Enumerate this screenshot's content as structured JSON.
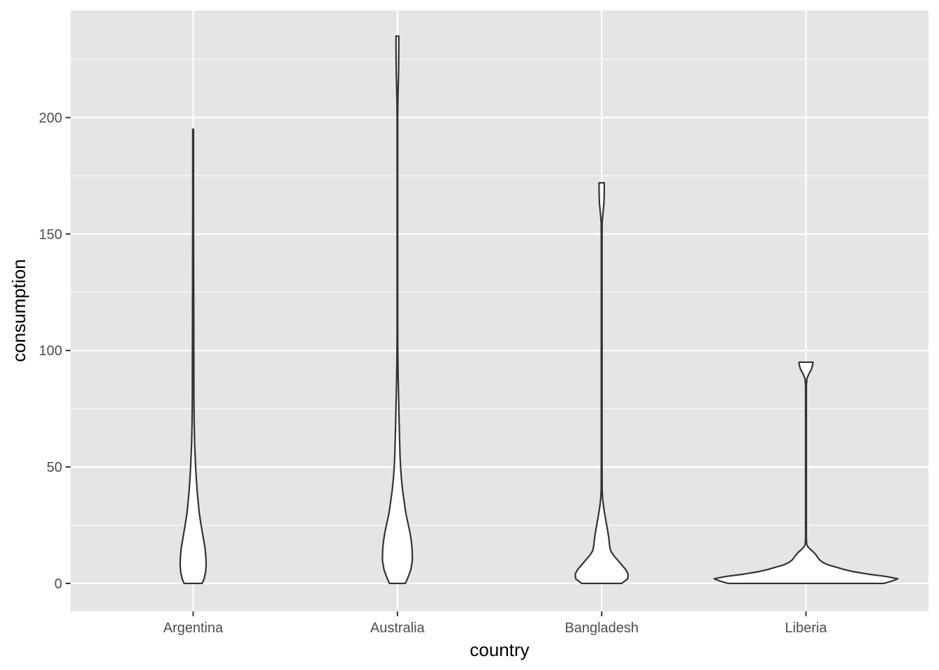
{
  "chart_data": {
    "type": "violin",
    "title": "",
    "xlabel": "country",
    "ylabel": "consumption",
    "categories": [
      "Argentina",
      "Australia",
      "Bangladesh",
      "Liberia"
    ],
    "ylim": [
      -12,
      246
    ],
    "yticks": [
      0,
      50,
      100,
      150,
      200
    ],
    "grid": true,
    "legend": "none",
    "colors": {
      "panel": "#e5e5e5",
      "grid": "#ffffff",
      "violin_fill": "#ffffff",
      "violin_outline": "#333333"
    },
    "violins": [
      {
        "category": "Argentina",
        "density": [
          [
            0,
            0.09
          ],
          [
            2,
            0.11
          ],
          [
            5,
            0.125
          ],
          [
            8,
            0.13
          ],
          [
            11,
            0.128
          ],
          [
            15,
            0.12
          ],
          [
            20,
            0.1
          ],
          [
            25,
            0.08
          ],
          [
            30,
            0.062
          ],
          [
            35,
            0.05
          ],
          [
            40,
            0.04
          ],
          [
            45,
            0.032
          ],
          [
            50,
            0.025
          ],
          [
            60,
            0.015
          ],
          [
            70,
            0.01
          ],
          [
            80,
            0.008
          ],
          [
            100,
            0.007
          ],
          [
            120,
            0.006
          ],
          [
            140,
            0.005
          ],
          [
            160,
            0.004
          ],
          [
            180,
            0.004
          ],
          [
            195,
            0.004
          ]
        ]
      },
      {
        "category": "Australia",
        "density": [
          [
            0,
            0.08
          ],
          [
            3,
            0.11
          ],
          [
            6,
            0.135
          ],
          [
            10,
            0.15
          ],
          [
            14,
            0.148
          ],
          [
            18,
            0.14
          ],
          [
            22,
            0.125
          ],
          [
            26,
            0.105
          ],
          [
            30,
            0.085
          ],
          [
            35,
            0.068
          ],
          [
            40,
            0.052
          ],
          [
            45,
            0.04
          ],
          [
            50,
            0.032
          ],
          [
            55,
            0.026
          ],
          [
            60,
            0.023
          ],
          [
            65,
            0.02
          ],
          [
            70,
            0.017
          ],
          [
            80,
            0.012
          ],
          [
            90,
            0.007
          ],
          [
            100,
            0.004
          ],
          [
            110,
            0.003
          ],
          [
            150,
            0.003
          ],
          [
            190,
            0.003
          ],
          [
            200,
            0.003
          ],
          [
            205,
            0.004
          ],
          [
            210,
            0.006
          ],
          [
            215,
            0.009
          ],
          [
            220,
            0.012
          ],
          [
            225,
            0.013
          ],
          [
            230,
            0.014
          ],
          [
            235,
            0.014
          ]
        ]
      },
      {
        "category": "Bangladesh",
        "density": [
          [
            0,
            0.2
          ],
          [
            2,
            0.26
          ],
          [
            4,
            0.265
          ],
          [
            6,
            0.24
          ],
          [
            8,
            0.2
          ],
          [
            10,
            0.16
          ],
          [
            12,
            0.12
          ],
          [
            14,
            0.09
          ],
          [
            16,
            0.08
          ],
          [
            18,
            0.075
          ],
          [
            20,
            0.07
          ],
          [
            22,
            0.062
          ],
          [
            25,
            0.05
          ],
          [
            28,
            0.038
          ],
          [
            32,
            0.022
          ],
          [
            36,
            0.01
          ],
          [
            40,
            0.005
          ],
          [
            50,
            0.004
          ],
          [
            100,
            0.004
          ],
          [
            150,
            0.004
          ],
          [
            155,
            0.005
          ],
          [
            160,
            0.015
          ],
          [
            163,
            0.022
          ],
          [
            166,
            0.025
          ],
          [
            170,
            0.026
          ],
          [
            172,
            0.026
          ]
        ]
      },
      {
        "category": "Liberia",
        "density": [
          [
            0,
            0.78
          ],
          [
            1,
            0.86
          ],
          [
            2,
            0.92
          ],
          [
            3,
            0.8
          ],
          [
            4,
            0.62
          ],
          [
            5,
            0.48
          ],
          [
            6,
            0.38
          ],
          [
            7,
            0.3
          ],
          [
            8,
            0.22
          ],
          [
            9,
            0.17
          ],
          [
            10,
            0.14
          ],
          [
            11,
            0.12
          ],
          [
            12,
            0.105
          ],
          [
            13,
            0.085
          ],
          [
            14,
            0.06
          ],
          [
            15,
            0.035
          ],
          [
            16,
            0.015
          ],
          [
            17,
            0.007
          ],
          [
            20,
            0.004
          ],
          [
            50,
            0.004
          ],
          [
            85,
            0.004
          ],
          [
            88,
            0.01
          ],
          [
            90,
            0.03
          ],
          [
            92,
            0.055
          ],
          [
            94,
            0.068
          ],
          [
            95,
            0.07
          ]
        ]
      }
    ]
  }
}
